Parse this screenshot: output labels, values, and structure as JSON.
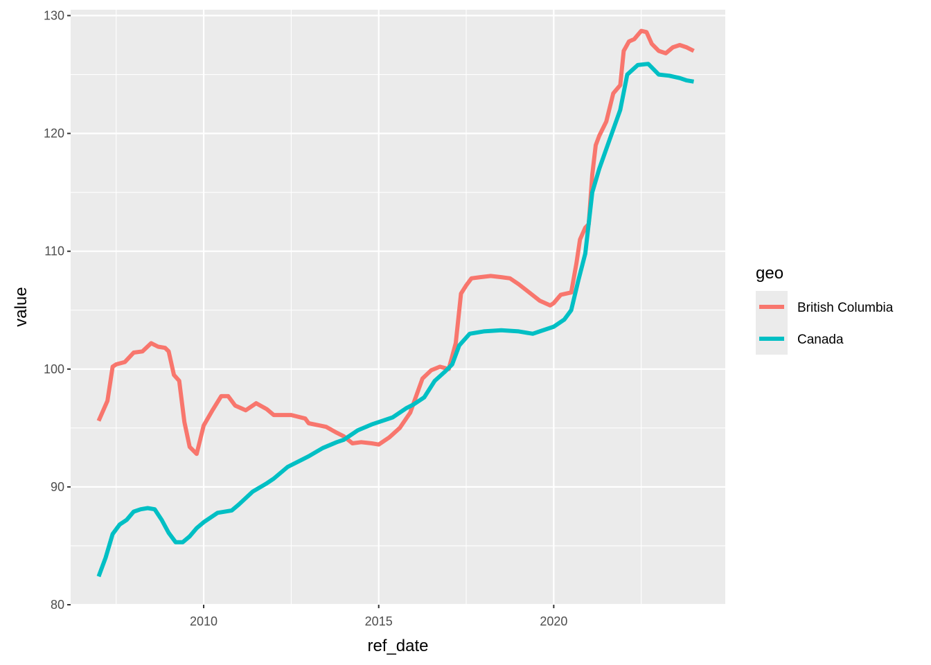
{
  "chart_data": {
    "type": "line",
    "xlabel": "ref_date",
    "ylabel": "value",
    "xlim": [
      2006.2,
      2024.9
    ],
    "ylim": [
      80,
      130.5
    ],
    "x_ticks": [
      2010,
      2015,
      2020
    ],
    "x_tick_labels": [
      "2010",
      "2015",
      "2020"
    ],
    "y_ticks": [
      80,
      90,
      100,
      110,
      120,
      130
    ],
    "y_tick_labels": [
      "80",
      "90",
      "100",
      "110",
      "120",
      "130"
    ],
    "grid": true,
    "legend": {
      "title": "geo",
      "placement": "right"
    },
    "series": [
      {
        "name": "British Columbia",
        "color": "#F8766D",
        "x": [
          2007.0,
          2007.25,
          2007.4,
          2007.5,
          2007.75,
          2008.0,
          2008.25,
          2008.5,
          2008.7,
          2008.9,
          2009.0,
          2009.15,
          2009.3,
          2009.45,
          2009.6,
          2009.8,
          2010.0,
          2010.25,
          2010.5,
          2010.7,
          2010.9,
          2011.2,
          2011.5,
          2011.8,
          2012.0,
          2012.5,
          2012.9,
          2013.0,
          2013.5,
          2013.8,
          2014.0,
          2014.25,
          2014.5,
          2014.8,
          2015.0,
          2015.3,
          2015.6,
          2015.9,
          2016.25,
          2016.5,
          2016.75,
          2017.0,
          2017.2,
          2017.35,
          2017.5,
          2017.65,
          2017.9,
          2018.2,
          2018.5,
          2018.75,
          2019.0,
          2019.3,
          2019.6,
          2019.9,
          2020.0,
          2020.2,
          2020.5,
          2020.65,
          2020.75,
          2020.9,
          2021.0,
          2021.1,
          2021.2,
          2021.3,
          2021.5,
          2021.7,
          2021.9,
          2022.0,
          2022.15,
          2022.3,
          2022.5,
          2022.65,
          2022.8,
          2023.0,
          2023.2,
          2023.4,
          2023.6,
          2023.8,
          2024.0
        ],
        "values": [
          95.6,
          97.3,
          100.2,
          100.4,
          100.6,
          101.4,
          101.5,
          102.2,
          101.9,
          101.8,
          101.5,
          99.5,
          99.0,
          95.5,
          93.4,
          92.8,
          95.2,
          96.5,
          97.7,
          97.7,
          96.9,
          96.5,
          97.1,
          96.6,
          96.1,
          96.1,
          95.8,
          95.4,
          95.1,
          94.6,
          94.3,
          93.7,
          93.8,
          93.7,
          93.6,
          94.2,
          95.0,
          96.3,
          99.2,
          99.9,
          100.2,
          100.0,
          102.2,
          106.4,
          107.1,
          107.7,
          107.8,
          107.9,
          107.8,
          107.7,
          107.2,
          106.5,
          105.8,
          105.4,
          105.6,
          106.3,
          106.5,
          109.0,
          111.0,
          112.0,
          112.3,
          116.5,
          119.0,
          119.8,
          121.0,
          123.4,
          124.1,
          127.0,
          127.8,
          128.0,
          128.7,
          128.6,
          127.6,
          127.0,
          126.8,
          127.3,
          127.5,
          127.3,
          127.0
        ],
        "line_width": 6
      },
      {
        "name": "Canada",
        "color": "#00BFC4",
        "x": [
          2007.0,
          2007.2,
          2007.4,
          2007.6,
          2007.8,
          2008.0,
          2008.2,
          2008.4,
          2008.6,
          2008.8,
          2009.0,
          2009.2,
          2009.4,
          2009.6,
          2009.8,
          2010.0,
          2010.4,
          2010.8,
          2011.0,
          2011.4,
          2011.8,
          2012.0,
          2012.4,
          2012.8,
          2013.0,
          2013.4,
          2013.8,
          2014.0,
          2014.4,
          2014.8,
          2015.0,
          2015.4,
          2015.8,
          2016.0,
          2016.3,
          2016.6,
          2016.9,
          2017.1,
          2017.3,
          2017.6,
          2018.0,
          2018.5,
          2019.0,
          2019.4,
          2019.6,
          2020.0,
          2020.3,
          2020.5,
          2020.7,
          2020.9,
          2021.1,
          2021.3,
          2021.6,
          2021.9,
          2022.1,
          2022.4,
          2022.7,
          2023.0,
          2023.3,
          2023.6,
          2023.8,
          2024.0
        ],
        "values": [
          82.4,
          84.0,
          86.0,
          86.8,
          87.2,
          87.9,
          88.1,
          88.2,
          88.1,
          87.2,
          86.1,
          85.3,
          85.3,
          85.8,
          86.5,
          87.0,
          87.8,
          88.0,
          88.5,
          89.6,
          90.3,
          90.7,
          91.7,
          92.3,
          92.6,
          93.3,
          93.8,
          94.0,
          94.8,
          95.3,
          95.5,
          95.9,
          96.7,
          97.0,
          97.6,
          99.0,
          99.8,
          100.4,
          102.0,
          103.0,
          103.2,
          103.3,
          103.2,
          103.0,
          103.2,
          103.6,
          104.2,
          105.0,
          107.5,
          109.8,
          115.0,
          117.0,
          119.5,
          122.0,
          125.0,
          125.8,
          125.9,
          125.0,
          124.9,
          124.7,
          124.5,
          124.4
        ],
        "line_width": 6
      }
    ]
  }
}
